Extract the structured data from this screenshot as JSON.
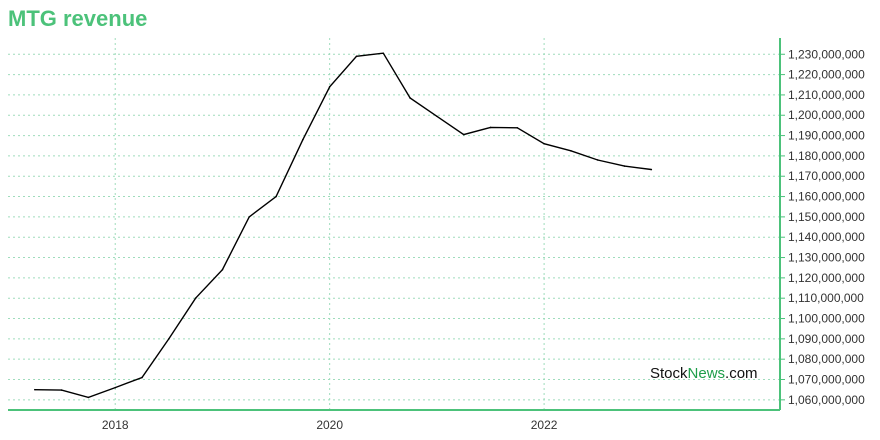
{
  "chart_data": {
    "type": "line",
    "title": "MTG revenue",
    "xlabel": "",
    "ylabel": "",
    "x": [
      2017.25,
      2017.5,
      2017.75,
      2018.0,
      2018.25,
      2018.5,
      2018.75,
      2019.0,
      2019.25,
      2019.5,
      2019.75,
      2020.0,
      2020.25,
      2020.5,
      2020.75,
      2021.0,
      2021.25,
      2021.5,
      2021.75,
      2022.0,
      2022.25,
      2022.5,
      2022.75,
      2023.0
    ],
    "series": [
      {
        "values": [
          1065000000,
          1064800000,
          1061200000,
          1066000000,
          1071000000,
          1090000000,
          1110000000,
          1124000000,
          1150000000,
          1160000000,
          1188000000,
          1214000000,
          1229000000,
          1230500000,
          1208500000,
          1199500000,
          1190500000,
          1194000000,
          1193800000,
          1186000000,
          1182500000,
          1178000000,
          1175000000,
          1173300000
        ]
      }
    ],
    "xticks": [
      "2018",
      "2020",
      "2022"
    ],
    "xtick_values": [
      2018,
      2020,
      2022
    ],
    "yticks": [
      "1,060,000,000",
      "1,070,000,000",
      "1,080,000,000",
      "1,090,000,000",
      "1,100,000,000",
      "1,110,000,000",
      "1,120,000,000",
      "1,130,000,000",
      "1,140,000,000",
      "1,150,000,000",
      "1,160,000,000",
      "1,170,000,000",
      "1,180,000,000",
      "1,190,000,000",
      "1,200,000,000",
      "1,210,000,000",
      "1,220,000,000",
      "1,230,000,000"
    ],
    "ytick_values": [
      1060000000,
      1070000000,
      1080000000,
      1090000000,
      1100000000,
      1110000000,
      1120000000,
      1130000000,
      1140000000,
      1150000000,
      1160000000,
      1170000000,
      1180000000,
      1190000000,
      1200000000,
      1210000000,
      1220000000,
      1230000000
    ],
    "xlim": [
      2017.0,
      2024.2
    ],
    "ylim": [
      1055000000,
      1238000000
    ],
    "grid": true,
    "line_color": "#000000",
    "axis_color": "#4cc27a"
  },
  "watermark": {
    "part1": "Stock",
    "part2": "News",
    "part3": ".com"
  }
}
